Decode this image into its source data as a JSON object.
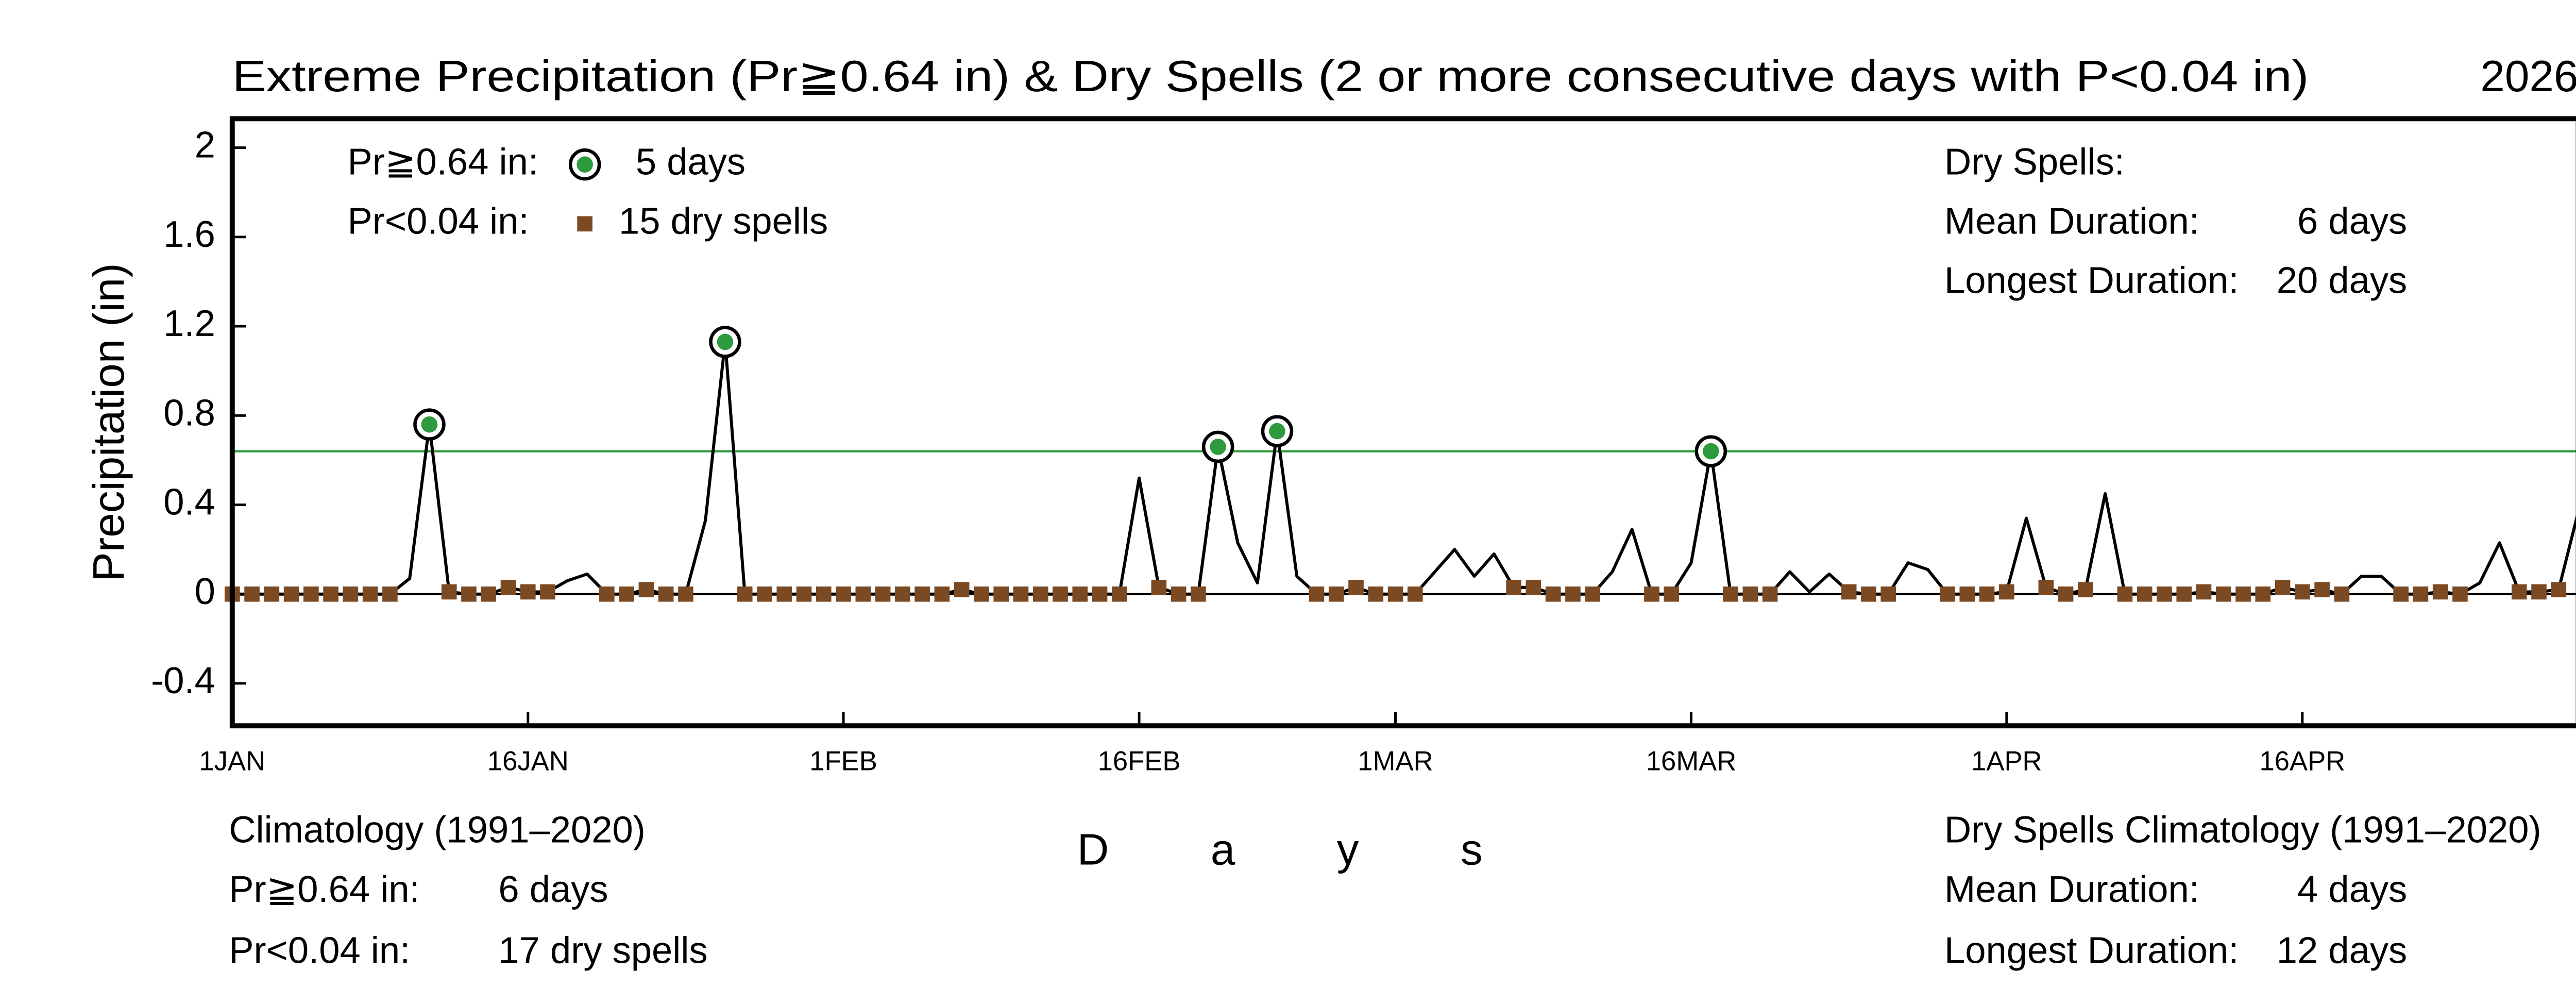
{
  "chart_data": {
    "type": "line",
    "title": "Extreme Precipitation (Pr≧0.64 in) & Dry Spells (2 or more consecutive days with P<0.04 in)",
    "year": "2026",
    "y_label": "Precipitation (in)",
    "x_label": "Days",
    "categories": [
      "1JAN",
      null,
      null,
      null,
      null,
      null,
      null,
      null,
      null,
      null,
      null,
      null,
      null,
      null,
      null,
      "16JAN",
      null,
      null,
      null,
      null,
      null,
      null,
      null,
      null,
      null,
      null,
      null,
      null,
      null,
      null,
      null,
      "1FEB",
      null,
      null,
      null,
      null,
      null,
      null,
      null,
      null,
      null,
      null,
      null,
      null,
      null,
      null,
      "16FEB",
      null,
      null,
      null,
      null,
      null,
      null,
      null,
      null,
      null,
      null,
      null,
      null,
      "1MAR",
      null,
      null,
      null,
      null,
      null,
      null,
      null,
      null,
      null,
      null,
      null,
      null,
      null,
      null,
      "16MAR",
      null,
      null,
      null,
      null,
      null,
      null,
      null,
      null,
      null,
      null,
      null,
      null,
      null,
      null,
      null,
      "1APR",
      null,
      null,
      null,
      null,
      null,
      null,
      null,
      null,
      null,
      null,
      null,
      null,
      null,
      null,
      "16APR",
      null,
      null,
      null,
      null,
      null,
      null,
      null,
      null,
      null,
      null,
      null,
      null,
      null,
      null
    ],
    "values": [
      0,
      0,
      0,
      0,
      0,
      0,
      0,
      0,
      0,
      0.07,
      0.76,
      0.01,
      0,
      0,
      0.03,
      0.01,
      0.01,
      0.06,
      0.09,
      0,
      0,
      0.02,
      0,
      0,
      0.33,
      1.13,
      0,
      0,
      0,
      0,
      0,
      0,
      0,
      0,
      0,
      0,
      0,
      0.02,
      0,
      0,
      0,
      0,
      0,
      0,
      0,
      0,
      0.52,
      0.03,
      0,
      0,
      0.66,
      0.23,
      0.05,
      0.73,
      0.08,
      0,
      0,
      0.03,
      0,
      0,
      0,
      0.1,
      0.2,
      0.08,
      0.18,
      0.03,
      0.03,
      0,
      0,
      0,
      0.1,
      0.29,
      0,
      0,
      0.14,
      0.64,
      0,
      0,
      0,
      0.1,
      0.01,
      0.09,
      0.01,
      0,
      0,
      0.14,
      0.11,
      0,
      0,
      0,
      0.01,
      0.34,
      0.03,
      0,
      0.02,
      0.45,
      0,
      0,
      0,
      0,
      0.01,
      0,
      0,
      0,
      0.03,
      0.01,
      0.02,
      0,
      0.08,
      0.08,
      0,
      0,
      0.01,
      0,
      0.05,
      0.23,
      0.01,
      0.01,
      0.02,
      0.37
    ],
    "line_color": "#000000",
    "extreme_limit": 0.64,
    "extreme_color": "#2e9a3e",
    "dry_limit": 0.04,
    "min_spell": 2,
    "dry_color": "#7b4a22",
    "zero_line": 0,
    "ylim": [
      -0.59,
      2.13
    ],
    "yticks": [
      -0.4,
      0,
      0.4,
      0.8,
      1.2,
      1.6,
      2
    ],
    "legend": [
      {
        "label": "Pr≧0.64 in:",
        "marker": "circle",
        "text": "5 days"
      },
      {
        "label": "Pr<0.04 in:",
        "marker": "square",
        "text": "15 dry spells"
      }
    ],
    "dry_stats": {
      "title": "Dry Spells:",
      "mean_label": "Mean Duration:",
      "mean": "6 days",
      "longest_label": "Longest Duration:",
      "longest": "20 days"
    },
    "climatology": {
      "title": "Climatology (1991–2020)",
      "extreme_label": "Pr≧0.64 in:",
      "extreme": "6 days",
      "dry_label": "Pr<0.04 in:",
      "dry": "17 dry spells"
    },
    "dry_climatology": {
      "title": "Dry Spells Climatology (1991–2020)",
      "mean_label": "Mean Duration:",
      "mean": "4 days",
      "longest_label": "Longest Duration:",
      "longest": "12 days"
    }
  }
}
